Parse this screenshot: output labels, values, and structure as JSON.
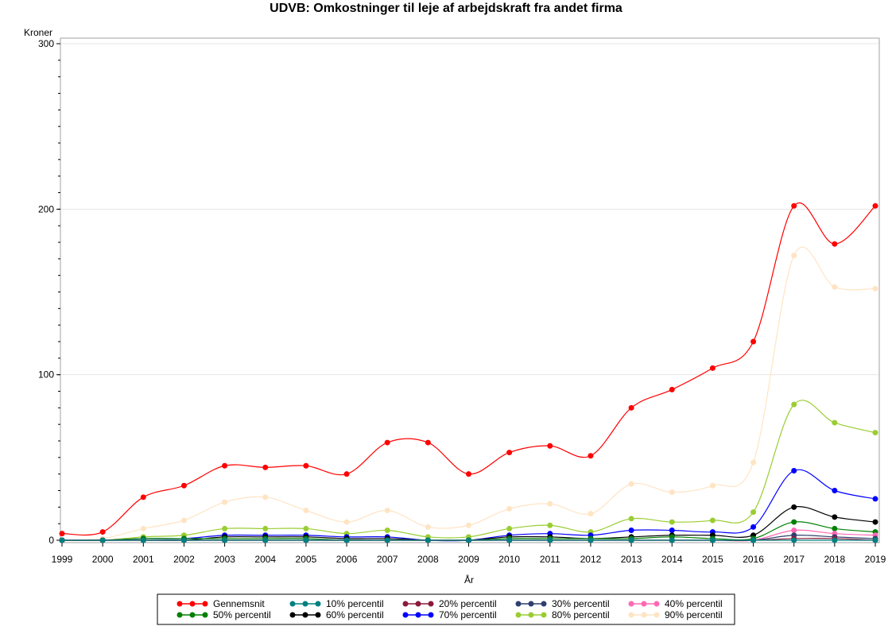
{
  "chart_data": {
    "type": "line",
    "title": "UDVB: Omkostninger til leje af arbejdskraft fra andet firma",
    "xlabel": "År",
    "ylabel": "Kroner",
    "ylim": [
      0,
      300
    ],
    "yticks": [
      0,
      100,
      200,
      300
    ],
    "grid": true,
    "legend_placement": "bottom",
    "x": [
      1999,
      2000,
      2001,
      2002,
      2003,
      2004,
      2005,
      2006,
      2007,
      2008,
      2009,
      2010,
      2011,
      2012,
      2013,
      2014,
      2015,
      2016,
      2017,
      2018,
      2019
    ],
    "series": [
      {
        "name": "Gennemsnit",
        "color": "#ff0000",
        "values": [
          4,
          5,
          26,
          33,
          45,
          44,
          45,
          40,
          59,
          59,
          40,
          53,
          57,
          51,
          80,
          91,
          104,
          120,
          202,
          179,
          202
        ]
      },
      {
        "name": "10% percentil",
        "color": "#008080",
        "values": [
          0,
          0,
          0,
          0,
          0,
          0,
          0,
          0,
          0,
          0,
          0,
          0,
          0,
          0,
          0,
          0,
          0,
          0,
          0,
          0,
          0
        ]
      },
      {
        "name": "20% percentil",
        "color": "#8b1a3a",
        "values": [
          0,
          0,
          0,
          0,
          0,
          0,
          0,
          0,
          0,
          0,
          0,
          0,
          0,
          0,
          0,
          0,
          0,
          0,
          1,
          1,
          0
        ]
      },
      {
        "name": "30% percentil",
        "color": "#2f3f6f",
        "values": [
          0,
          0,
          0,
          0,
          0,
          0,
          0,
          0,
          0,
          0,
          0,
          0,
          0,
          0,
          0,
          0,
          0,
          0,
          3,
          2,
          1
        ]
      },
      {
        "name": "40% percentil",
        "color": "#ff69b4",
        "values": [
          0,
          0,
          0,
          0,
          0,
          0,
          0,
          0,
          0,
          0,
          0,
          0,
          0,
          0,
          0,
          0,
          0,
          0,
          6,
          4,
          3
        ]
      },
      {
        "name": "50% percentil",
        "color": "#008000",
        "values": [
          0,
          0,
          1,
          1,
          1,
          1,
          1,
          0,
          0,
          0,
          0,
          1,
          1,
          1,
          1,
          2,
          1,
          1,
          11,
          7,
          5
        ]
      },
      {
        "name": "60% percentil",
        "color": "#000000",
        "values": [
          0,
          0,
          0,
          0,
          2,
          2,
          2,
          1,
          1,
          0,
          0,
          2,
          2,
          1,
          2,
          3,
          3,
          3,
          20,
          14,
          11
        ]
      },
      {
        "name": "70% percentil",
        "color": "#0000ff",
        "values": [
          0,
          0,
          1,
          1,
          3,
          3,
          3,
          2,
          2,
          0,
          0,
          3,
          4,
          3,
          6,
          6,
          5,
          8,
          42,
          30,
          25
        ]
      },
      {
        "name": "80% percentil",
        "color": "#9acd32",
        "values": [
          0,
          0,
          2,
          3,
          7,
          7,
          7,
          4,
          6,
          2,
          2,
          7,
          9,
          5,
          13,
          11,
          12,
          17,
          82,
          71,
          65
        ]
      },
      {
        "name": "90% percentil",
        "color": "#ffe4c4",
        "values": [
          0,
          1,
          7,
          12,
          23,
          26,
          18,
          11,
          18,
          8,
          9,
          19,
          22,
          16,
          34,
          29,
          33,
          47,
          172,
          153,
          152
        ]
      }
    ]
  }
}
